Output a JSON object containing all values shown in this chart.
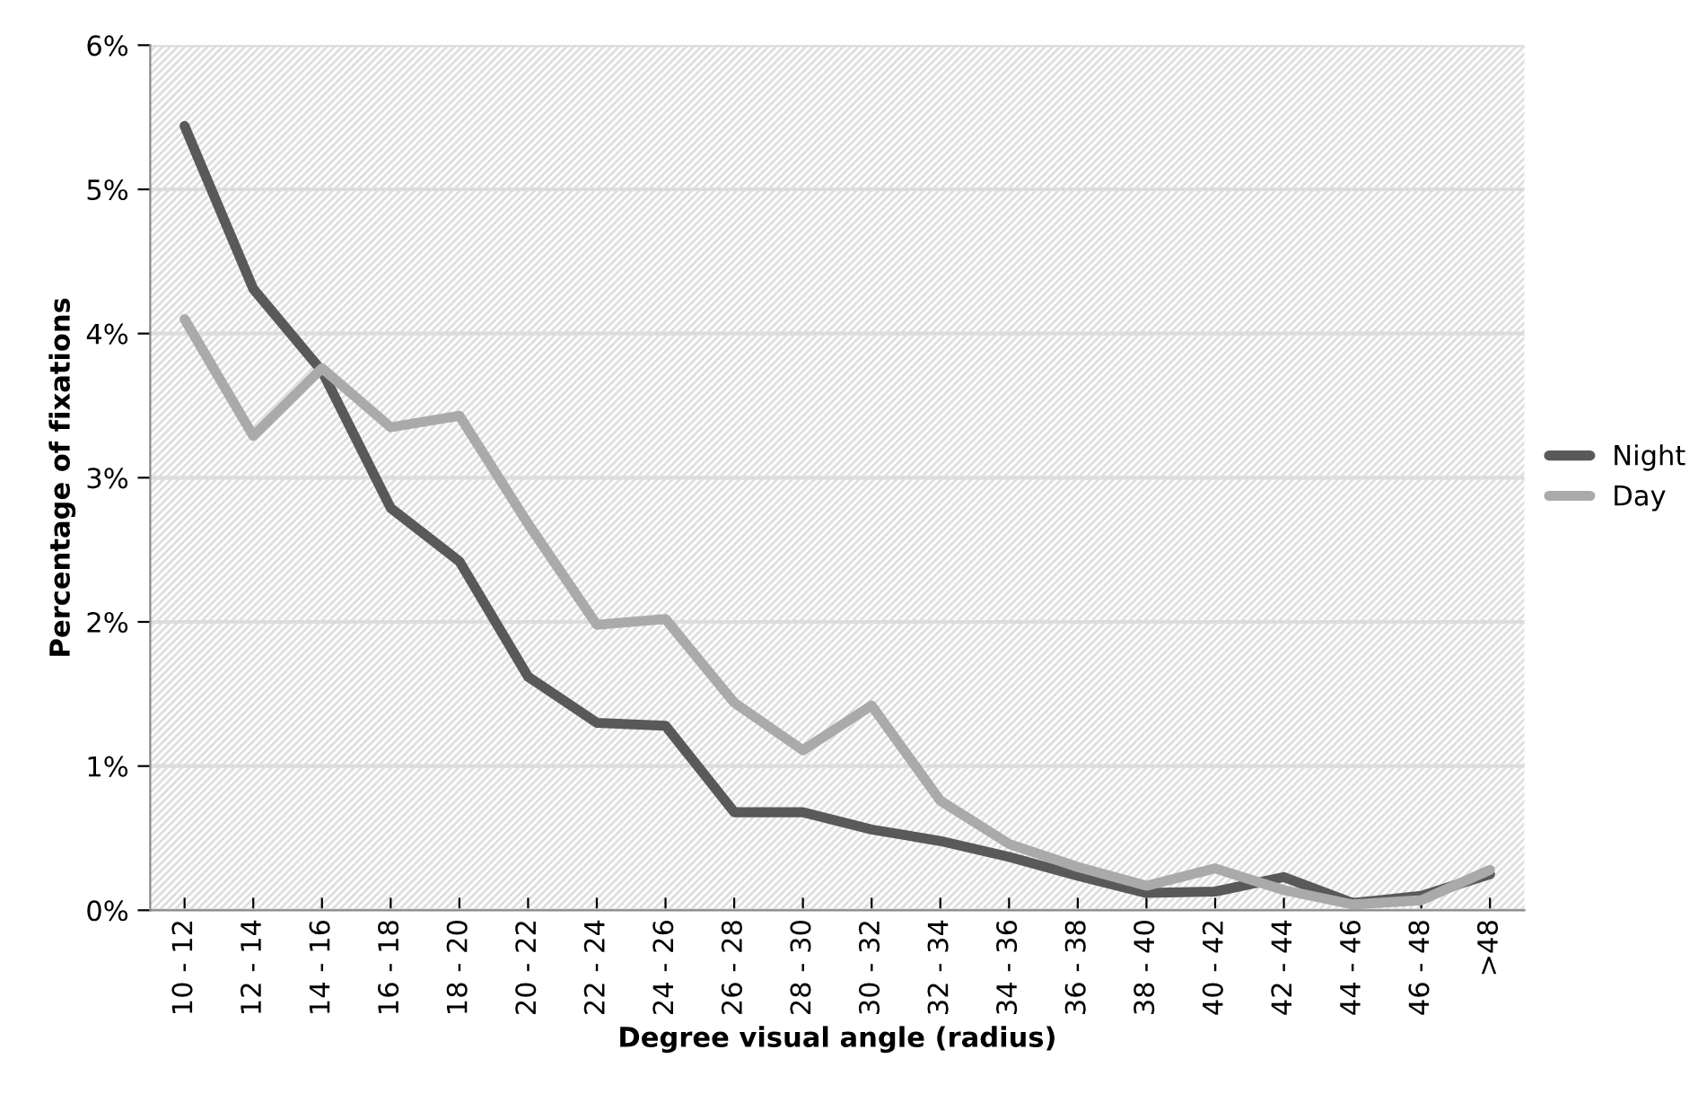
{
  "chart_data": {
    "type": "line",
    "xlabel": "Degree visual angle (radius)",
    "ylabel": "Percentage of fixations",
    "categories": [
      "10 - 12",
      "12 - 14",
      "14 - 16",
      "16 - 18",
      "18 - 20",
      "20 - 22",
      "22 - 24",
      "24 - 26",
      "26 - 28",
      "28 - 30",
      "30 - 32",
      "32 - 34",
      "34 - 36",
      "36 - 38",
      "38 - 40",
      "40 - 42",
      "42 - 44",
      "44 - 46",
      "46 - 48",
      ">48"
    ],
    "series": [
      {
        "name": "Night",
        "color": "#595959",
        "values": [
          5.44,
          4.31,
          3.74,
          2.79,
          2.42,
          1.62,
          1.3,
          1.28,
          0.68,
          0.68,
          0.56,
          0.48,
          0.37,
          0.24,
          0.12,
          0.13,
          0.23,
          0.05,
          0.1,
          0.25
        ]
      },
      {
        "name": "Day",
        "color": "#aaaaaa",
        "values": [
          4.1,
          3.29,
          3.76,
          3.35,
          3.43,
          2.68,
          1.98,
          2.02,
          1.44,
          1.11,
          1.42,
          0.76,
          0.46,
          0.3,
          0.17,
          0.29,
          0.14,
          0.04,
          0.07,
          0.28
        ]
      }
    ],
    "ylim": [
      0,
      6
    ],
    "yticks": [
      {
        "value": 0,
        "label": "0%"
      },
      {
        "value": 1,
        "label": "1%"
      },
      {
        "value": 2,
        "label": "2%"
      },
      {
        "value": 3,
        "label": "3%"
      },
      {
        "value": 4,
        "label": "4%"
      },
      {
        "value": 5,
        "label": "5%"
      },
      {
        "value": 6,
        "label": "6%"
      }
    ],
    "grid": "y",
    "legend": "right",
    "marker": "none",
    "line_style": "solid"
  }
}
